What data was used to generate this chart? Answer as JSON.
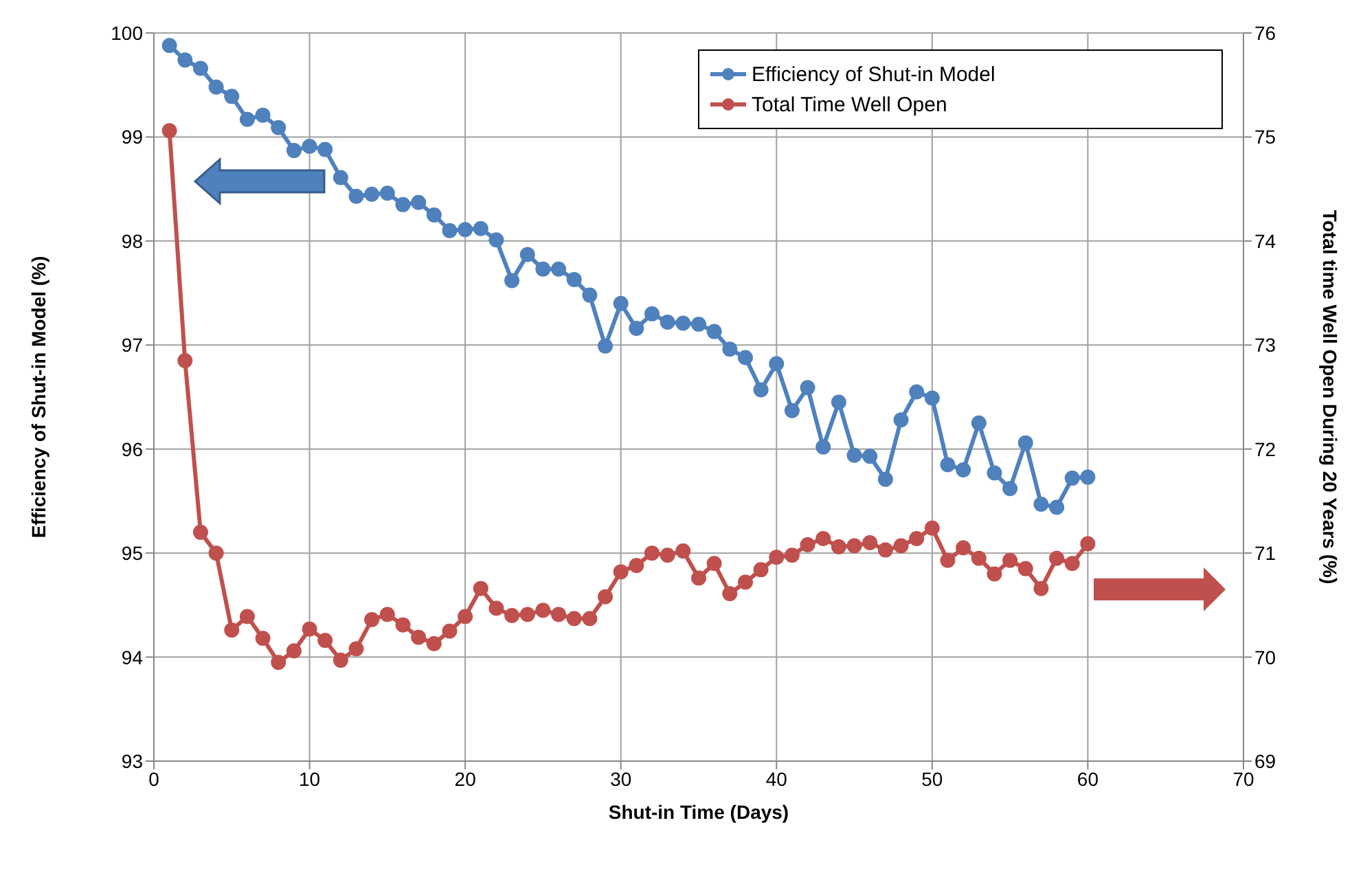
{
  "chart_data": {
    "type": "line",
    "xlabel": "Shut-in Time (Days)",
    "ylabel": "Efficiency of Shut-in Model (%)",
    "y2label": "Total time Well Open During 20 Years (%)",
    "x": [
      1,
      2,
      3,
      4,
      5,
      6,
      7,
      8,
      9,
      10,
      11,
      12,
      13,
      14,
      15,
      16,
      17,
      18,
      19,
      20,
      21,
      22,
      23,
      24,
      25,
      26,
      27,
      28,
      29,
      30,
      31,
      32,
      33,
      34,
      35,
      36,
      37,
      38,
      39,
      40,
      41,
      42,
      43,
      44,
      45,
      46,
      47,
      48,
      49,
      50,
      51,
      52,
      53,
      54,
      55,
      56,
      57,
      58,
      59,
      60
    ],
    "series": [
      {
        "name": "Efficiency of Shut-in Model",
        "color": "#4f81bd",
        "values": [
          99.88,
          99.74,
          99.66,
          99.48,
          99.39,
          99.17,
          99.21,
          99.09,
          98.87,
          98.91,
          98.88,
          98.61,
          98.43,
          98.45,
          98.46,
          98.35,
          98.37,
          98.25,
          98.1,
          98.11,
          98.12,
          98.01,
          97.62,
          97.87,
          97.73,
          97.73,
          97.63,
          97.48,
          96.99,
          97.4,
          97.16,
          97.3,
          97.22,
          97.21,
          97.2,
          97.13,
          96.96,
          96.88,
          96.57,
          96.82,
          96.37,
          96.59,
          96.02,
          96.45,
          95.94,
          95.93,
          95.71,
          96.28,
          96.55,
          96.49,
          95.85,
          95.8,
          96.25,
          95.77,
          95.62,
          96.06,
          95.47,
          95.44,
          95.72,
          95.73
        ]
      },
      {
        "name": "Total Time Well Open",
        "color": "#c0504d",
        "axis": "y2",
        "values": [
          75.06,
          72.85,
          71.2,
          71.0,
          70.26,
          70.39,
          70.18,
          69.95,
          70.06,
          70.27,
          70.16,
          69.97,
          70.08,
          70.36,
          70.41,
          70.31,
          70.19,
          70.13,
          70.25,
          70.39,
          70.66,
          70.47,
          70.4,
          70.41,
          70.45,
          70.41,
          70.37,
          70.37,
          70.58,
          70.82,
          70.88,
          71.0,
          70.98,
          71.02,
          70.76,
          70.9,
          70.61,
          70.72,
          70.84,
          70.96,
          70.98,
          71.08,
          71.14,
          71.06,
          71.07,
          71.1,
          71.03,
          71.07,
          71.14,
          71.24,
          70.93,
          71.05,
          70.95,
          70.8,
          70.93,
          70.85,
          70.66,
          70.95,
          70.9,
          71.09
        ]
      }
    ],
    "xlim": [
      0,
      70
    ],
    "xticks": [
      0,
      10,
      20,
      30,
      40,
      50,
      60,
      70
    ],
    "ylim": [
      93,
      100
    ],
    "yticks": [
      93,
      94,
      95,
      96,
      97,
      98,
      99,
      100
    ],
    "y2lim": [
      69,
      76
    ],
    "y2ticks": [
      69,
      70,
      71,
      72,
      73,
      74,
      75,
      76
    ],
    "grid": true,
    "legend": "top right",
    "marker": "circle",
    "line_style": "solid"
  }
}
